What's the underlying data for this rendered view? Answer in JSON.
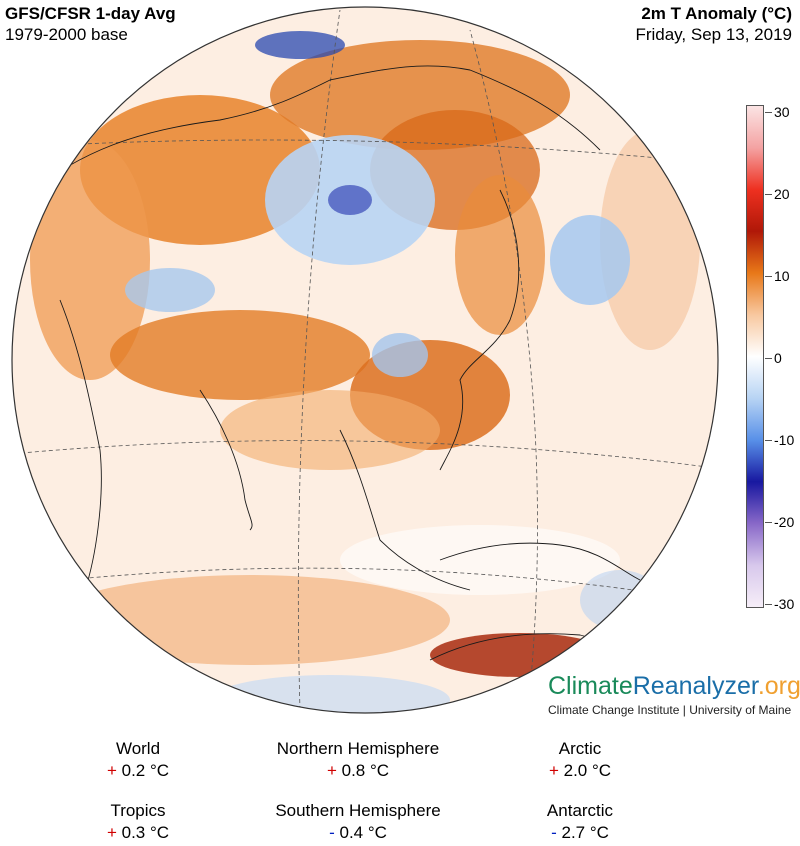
{
  "header": {
    "title": "GFS/CFSR 1-day Avg",
    "subtitle": "1979-2000 base",
    "variable": "2m T Anomaly (°C)",
    "date": "Friday, Sep 13, 2019"
  },
  "colorbar": {
    "ticks": [
      "30",
      "20",
      "10",
      "0",
      "-10",
      "-20",
      "-30"
    ],
    "colors": [
      "#fbe4e4",
      "#f4a3a3",
      "#ee3020",
      "#b01808",
      "#e87818",
      "#f8c8a0",
      "#ffffff",
      "#b8d4f4",
      "#5890e8",
      "#1818a0",
      "#8868c8",
      "#d8c8ec",
      "#f6eef8"
    ]
  },
  "brand": {
    "part1": "Climate",
    "part2": "Reanalyzer",
    "part3": ".org",
    "sub": "Climate Change Institute | University of Maine"
  },
  "stats": [
    {
      "label": "World",
      "sign": "+",
      "value": "0.2 °C"
    },
    {
      "label": "Northern Hemisphere",
      "sign": "+",
      "value": "0.8 °C"
    },
    {
      "label": "Arctic",
      "sign": "+",
      "value": "2.0 °C"
    },
    {
      "label": "Tropics",
      "sign": "+",
      "value": "0.3 °C"
    },
    {
      "label": "Southern Hemisphere",
      "sign": "-",
      "value": "0.4 °C"
    },
    {
      "label": "Antarctic",
      "sign": "-",
      "value": "2.7 °C"
    }
  ]
}
